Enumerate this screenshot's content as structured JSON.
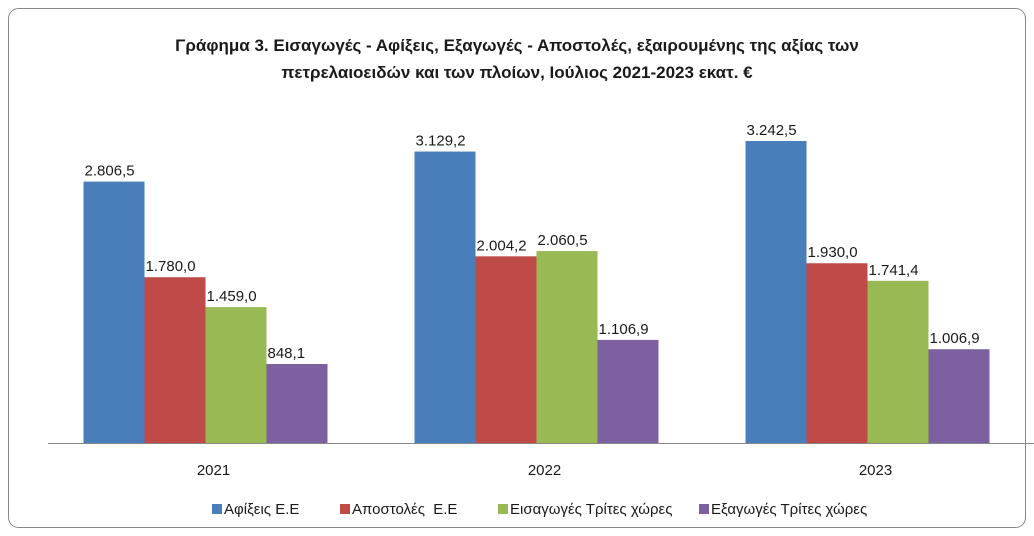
{
  "chart_data": {
    "type": "bar",
    "title": "Γράφημα 3. Εισαγωγές - Αφίξεις, Εξαγωγές - Αποστολές, εξαιρουμένης της αξίας των πετρελαιοειδών και των πλοίων, Ιούλιος 2021-2023 εκατ. €",
    "categories": [
      "2021",
      "2022",
      "2023"
    ],
    "series": [
      {
        "name": "Αφίξεις Ε.Ε",
        "color": "#4a7ebb",
        "values": [
          2806.5,
          3129.2,
          3242.5
        ],
        "value_labels": [
          "2.806,5",
          "3.129,2",
          "3.242,5"
        ]
      },
      {
        "name": "Αποστολές  Ε.Ε",
        "color": "#be4b48",
        "values": [
          1780.0,
          2004.2,
          1930.0
        ],
        "value_labels": [
          "1.780,0",
          "2.004,2",
          "1.930,0"
        ]
      },
      {
        "name": "Εισαγωγές Τρίτες χώρες",
        "color": "#98b954",
        "values": [
          1459.0,
          2060.5,
          1741.4
        ],
        "value_labels": [
          "1.459,0",
          "2.060,5",
          "1.741,4"
        ]
      },
      {
        "name": "Εξαγωγές Τρίτες χώρες",
        "color": "#7d60a0",
        "values": [
          848.1,
          1106.9,
          1006.9
        ],
        "value_labels": [
          "848,1",
          "1.106,9",
          "1.006,9"
        ]
      }
    ],
    "legend": "bottom"
  }
}
